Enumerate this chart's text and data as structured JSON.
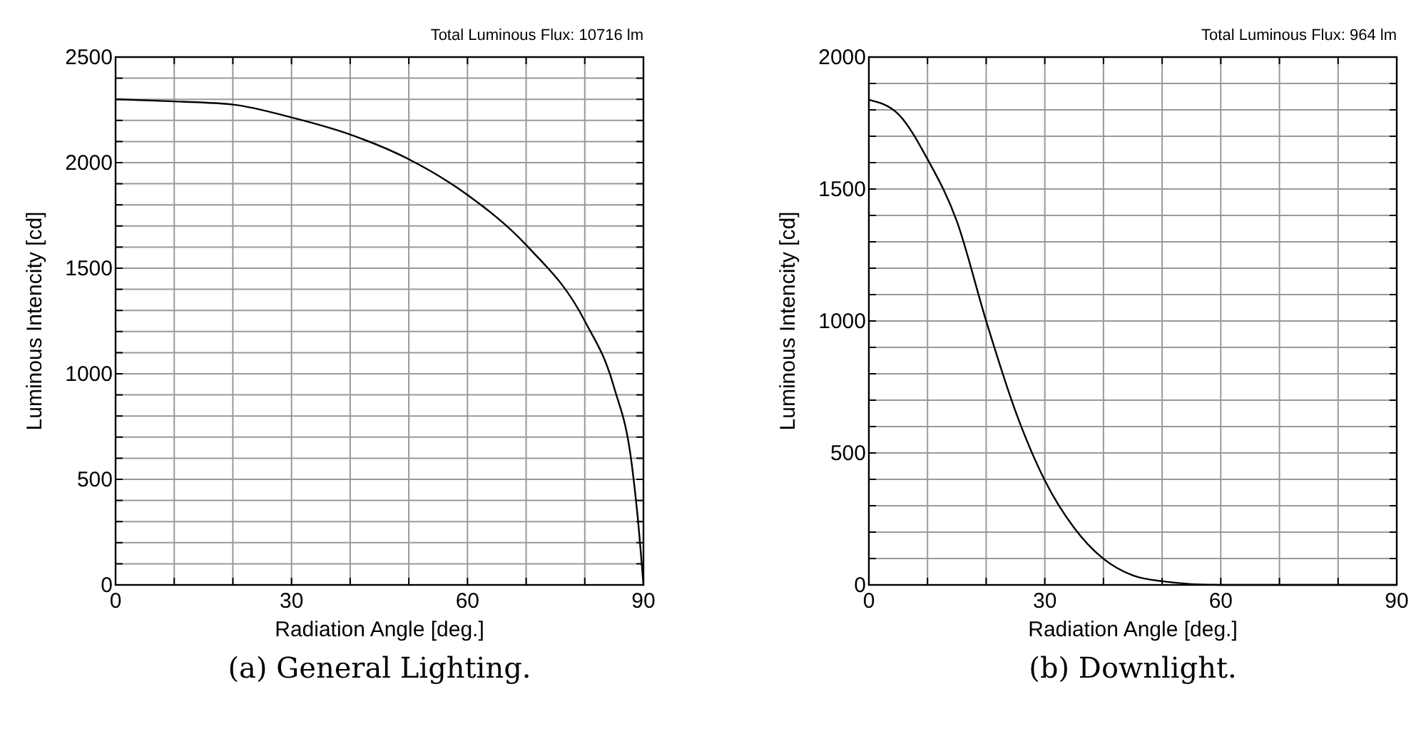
{
  "chart_data": [
    {
      "type": "line",
      "title": "Total Luminous Flux: 10716 lm",
      "subtitle": "(a) General Lighting.",
      "xlabel": "Radiation Angle [deg.]",
      "ylabel": "Luminous Intencity [cd]",
      "grid": true,
      "xlim": [
        0,
        90
      ],
      "ylim": [
        0,
        2500
      ],
      "xticks": [
        0,
        {
          "value": 10,
          "label": null
        },
        {
          "value": 20,
          "label": null
        },
        30,
        {
          "value": 40,
          "label": null
        },
        {
          "value": 50,
          "label": null
        },
        60,
        {
          "value": 70,
          "label": null
        },
        {
          "value": 80,
          "label": null
        },
        90
      ],
      "yticks": [
        0,
        {
          "value": 100,
          "label": null
        },
        {
          "value": 200,
          "label": null
        },
        {
          "value": 300,
          "label": null
        },
        {
          "value": 400,
          "label": null
        },
        500,
        {
          "value": 600,
          "label": null
        },
        {
          "value": 700,
          "label": null
        },
        {
          "value": 800,
          "label": null
        },
        {
          "value": 900,
          "label": null
        },
        1000,
        {
          "value": 1100,
          "label": null
        },
        {
          "value": 1200,
          "label": null
        },
        {
          "value": 1300,
          "label": null
        },
        {
          "value": 1400,
          "label": null
        },
        1500,
        {
          "value": 1600,
          "label": null
        },
        {
          "value": 1700,
          "label": null
        },
        {
          "value": 1800,
          "label": null
        },
        {
          "value": 1900,
          "label": null
        },
        2000,
        {
          "value": 2100,
          "label": null
        },
        {
          "value": 2200,
          "label": null
        },
        {
          "value": 2300,
          "label": null
        },
        {
          "value": 2400,
          "label": null
        },
        2500
      ],
      "series": [
        {
          "color": "#000000",
          "x": [
            0,
            10,
            20,
            30,
            40,
            50,
            60,
            70,
            80,
            85,
            88,
            89,
            90
          ],
          "values": [
            2300,
            2290,
            2275,
            2214,
            2133,
            2016,
            1847,
            1610,
            1250,
            935,
            574,
            327,
            0
          ]
        }
      ]
    },
    {
      "type": "line",
      "title": "Total Luminous Flux: 964 lm",
      "subtitle": "(b) Downlight.",
      "xlabel": "Radiation Angle [deg.]",
      "ylabel": "Luminous Intencity [cd]",
      "grid": true,
      "xlim": [
        0,
        90
      ],
      "ylim": [
        0,
        2000
      ],
      "xticks": [
        0,
        {
          "value": 10,
          "label": null
        },
        {
          "value": 20,
          "label": null
        },
        30,
        {
          "value": 40,
          "label": null
        },
        {
          "value": 50,
          "label": null
        },
        60,
        {
          "value": 70,
          "label": null
        },
        {
          "value": 80,
          "label": null
        },
        90
      ],
      "yticks": [
        0,
        {
          "value": 100,
          "label": null
        },
        {
          "value": 200,
          "label": null
        },
        {
          "value": 300,
          "label": null
        },
        {
          "value": 400,
          "label": null
        },
        500,
        {
          "value": 600,
          "label": null
        },
        {
          "value": 700,
          "label": null
        },
        {
          "value": 800,
          "label": null
        },
        {
          "value": 900,
          "label": null
        },
        1000,
        {
          "value": 1100,
          "label": null
        },
        {
          "value": 1200,
          "label": null
        },
        {
          "value": 1300,
          "label": null
        },
        {
          "value": 1400,
          "label": null
        },
        1500,
        {
          "value": 1600,
          "label": null
        },
        {
          "value": 1700,
          "label": null
        },
        {
          "value": 1800,
          "label": null
        },
        {
          "value": 1900,
          "label": null
        },
        2000
      ],
      "series": [
        {
          "color": "#000000",
          "x": [
            0,
            5,
            10,
            15,
            20,
            25,
            30,
            35,
            40,
            45,
            50,
            60,
            70,
            80,
            90
          ],
          "values": [
            1838,
            1784,
            1613,
            1378,
            1000,
            658,
            396,
            216,
            99,
            36,
            14,
            0,
            0,
            0,
            0
          ]
        }
      ]
    }
  ]
}
